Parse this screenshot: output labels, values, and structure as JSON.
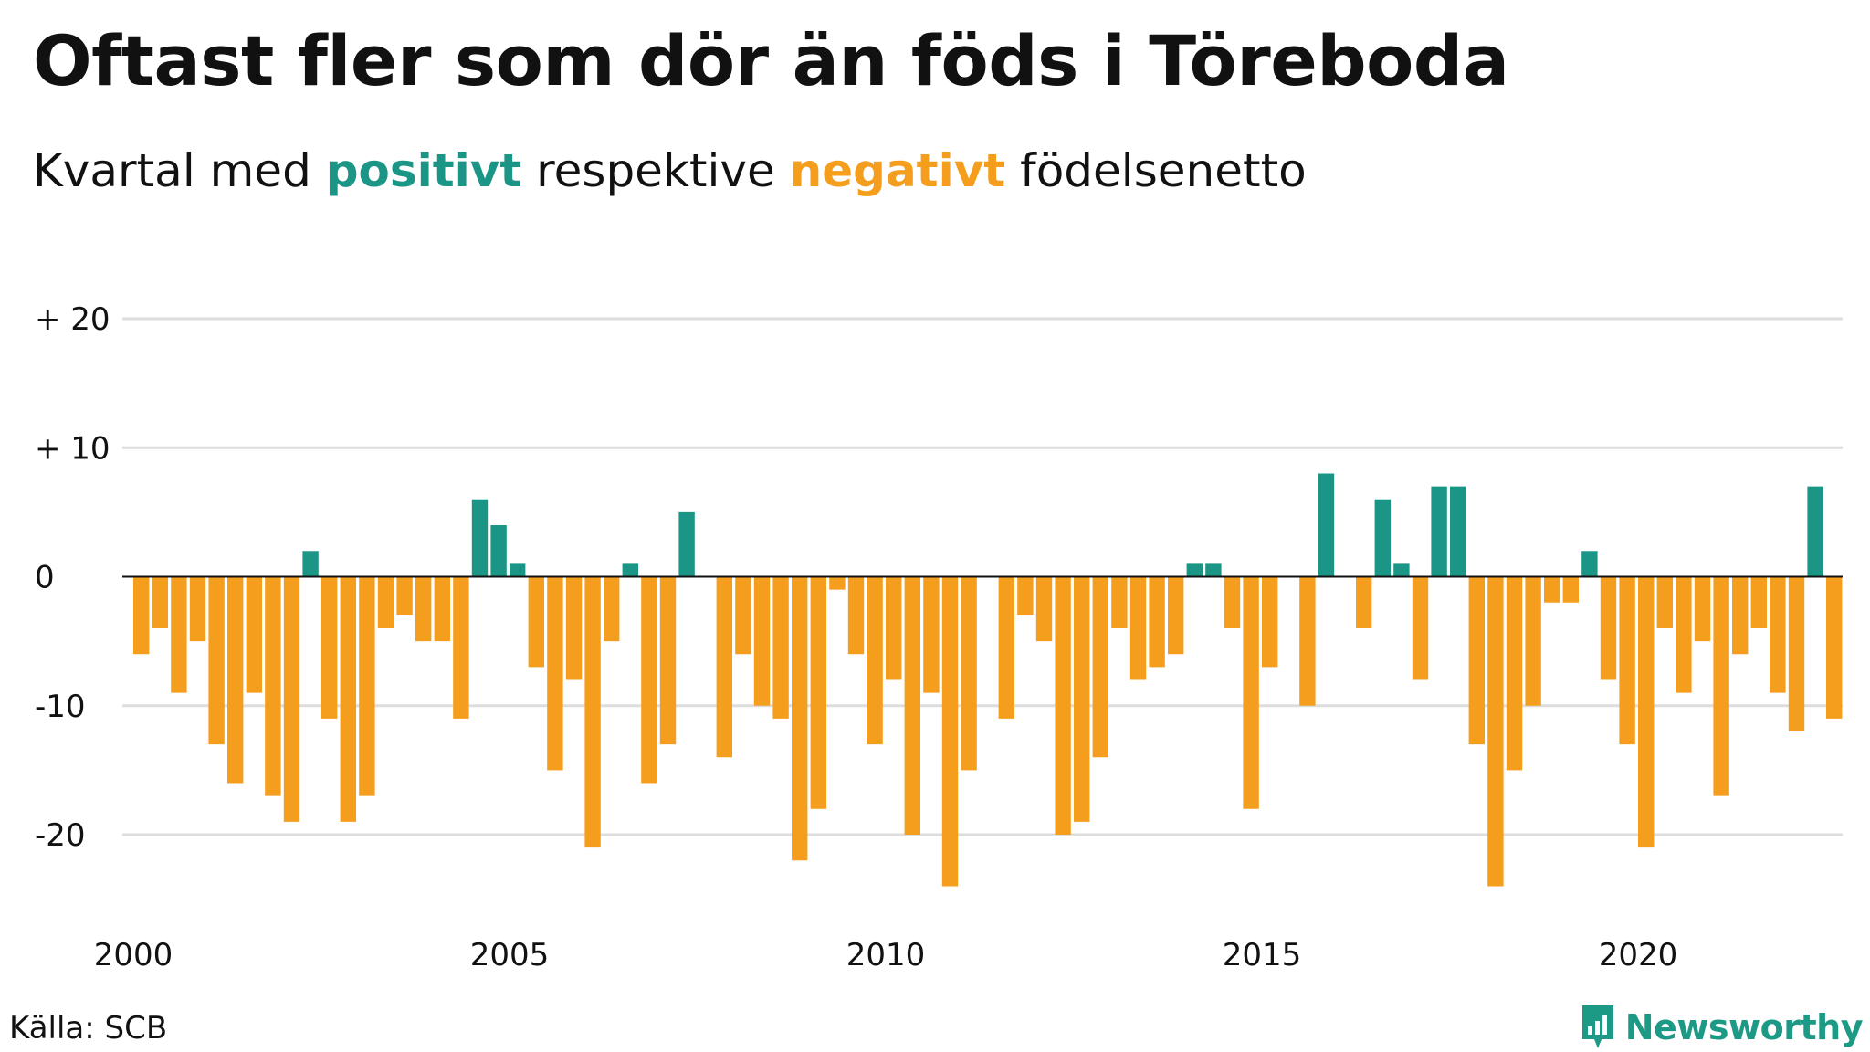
{
  "title": "Oftast fler som dör än föds i Töreboda",
  "subtitle": {
    "prefix": "Kvartal med ",
    "positive": "positivt",
    "middle": " respektive ",
    "negative": "negativt",
    "suffix": " födelsenetto"
  },
  "source": "Källa: SCB",
  "brand": "Newsworthy",
  "colors": {
    "positive": "#1b9585",
    "negative": "#f59e1e",
    "grid": "#dddddd",
    "zero_line": "#111111",
    "text": "#111111",
    "brand": "#1c9a86"
  },
  "chart_data": {
    "type": "bar",
    "series_name": "Födelsenetto per kvartal",
    "x_start_year": 2000,
    "periods_per_year": 4,
    "values": [
      -6,
      -4,
      -9,
      -5,
      -13,
      -16,
      -9,
      -17,
      -19,
      2,
      -11,
      -19,
      -17,
      -4,
      -3,
      -5,
      -5,
      -11,
      6,
      4,
      1,
      -7,
      -15,
      -8,
      -21,
      -5,
      1,
      -16,
      -13,
      5,
      0,
      -14,
      -6,
      -10,
      -11,
      -22,
      -18,
      -1,
      -6,
      -13,
      -8,
      -20,
      -9,
      -24,
      -15,
      0,
      -11,
      -3,
      -5,
      -20,
      -19,
      -14,
      -4,
      -8,
      -7,
      -6,
      1,
      1,
      -4,
      -18,
      -7,
      0,
      -10,
      8,
      0,
      -4,
      6,
      1,
      -8,
      7,
      7,
      -13,
      -24,
      -15,
      -10,
      -2,
      -2,
      2,
      -8,
      -13,
      -21,
      -4,
      -9,
      -5,
      -17,
      -6,
      -4,
      -9,
      -12,
      7,
      -11
    ],
    "ylim": [
      -26,
      22
    ],
    "y_ticks": [
      {
        "value": 20,
        "label": "+ 20"
      },
      {
        "value": 10,
        "label": "+ 10"
      },
      {
        "value": 0,
        "label": "0"
      },
      {
        "value": -10,
        "label": "-10"
      },
      {
        "value": -20,
        "label": "-20"
      }
    ],
    "x_ticks": [
      "2000",
      "2005",
      "2010",
      "2015",
      "2020"
    ],
    "grid": true,
    "xlabel": "",
    "ylabel": ""
  }
}
